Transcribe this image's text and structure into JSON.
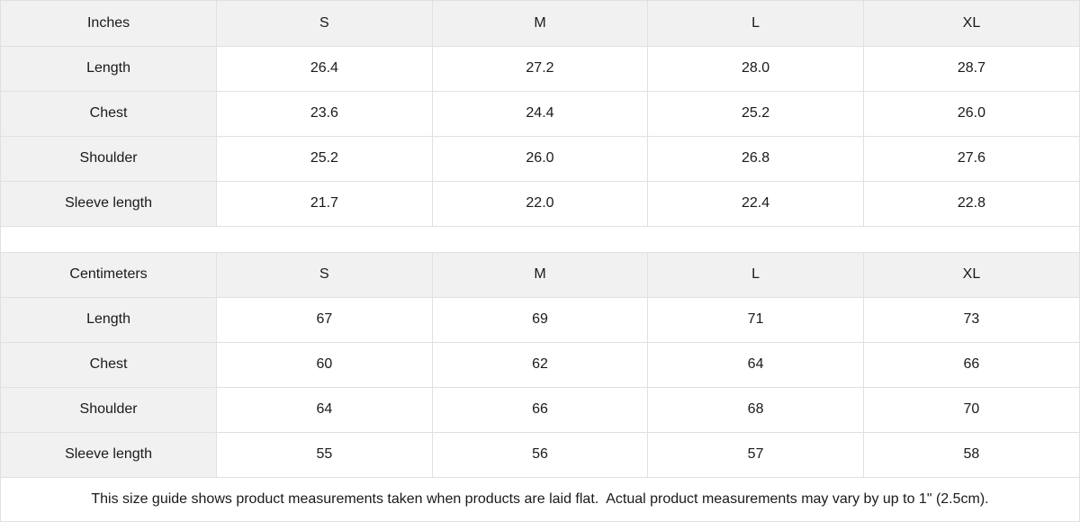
{
  "colors": {
    "header_bg": "#f1f1f1",
    "label_column_bg": "#f1f1f1",
    "border": "#e0e0e0",
    "text": "#1a1a1a",
    "background": "#ffffff"
  },
  "size_tables": [
    {
      "unit_label": "Inches",
      "size_headers": [
        "S",
        "M",
        "L",
        "XL"
      ],
      "rows": [
        {
          "label": "Length",
          "values": [
            "26.4",
            "27.2",
            "28.0",
            "28.7"
          ]
        },
        {
          "label": "Chest",
          "values": [
            "23.6",
            "24.4",
            "25.2",
            "26.0"
          ]
        },
        {
          "label": "Shoulder",
          "values": [
            "25.2",
            "26.0",
            "26.8",
            "27.6"
          ]
        },
        {
          "label": "Sleeve length",
          "values": [
            "21.7",
            "22.0",
            "22.4",
            "22.8"
          ]
        }
      ]
    },
    {
      "unit_label": "Centimeters",
      "size_headers": [
        "S",
        "M",
        "L",
        "XL"
      ],
      "rows": [
        {
          "label": "Length",
          "values": [
            "67",
            "69",
            "71",
            "73"
          ]
        },
        {
          "label": "Chest",
          "values": [
            "60",
            "62",
            "64",
            "66"
          ]
        },
        {
          "label": "Shoulder",
          "values": [
            "64",
            "66",
            "68",
            "70"
          ]
        },
        {
          "label": "Sleeve length",
          "values": [
            "55",
            "56",
            "57",
            "58"
          ]
        }
      ]
    }
  ],
  "footnote": "This size guide shows product measurements taken when products are laid flat.  Actual product measurements may vary by up to 1\" (2.5cm)."
}
